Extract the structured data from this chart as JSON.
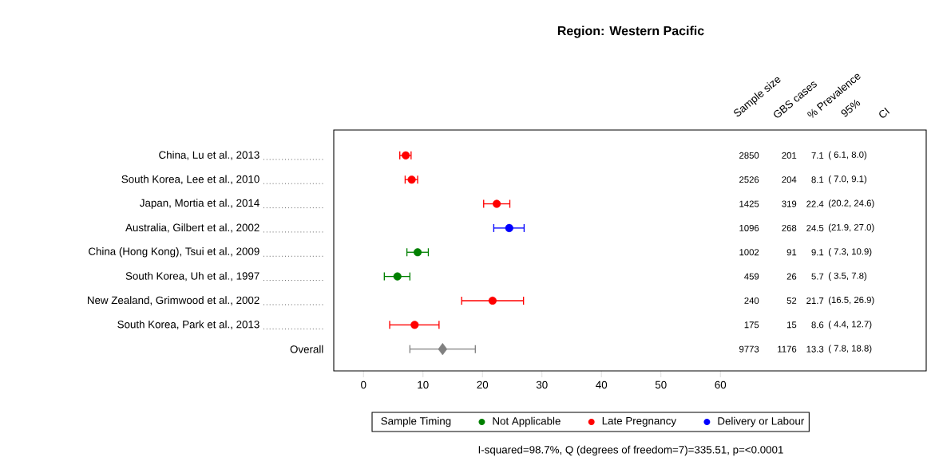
{
  "chart_data": {
    "type": "scatter",
    "orientation": "horizontal",
    "title": "Region: Western Pacific",
    "categories": [
      "China, Lu et al., 2013",
      "South Korea, Lee et al., 2010",
      "Japan, Mortia et al., 2014",
      "Australia, Gilbert et al., 2002",
      "China (Hong Kong), Tsui et al., 2009",
      "South Korea, Uh et al., 1997",
      "New Zealand, Grimwood et al., 2002",
      "South Korea, Park et al., 2013",
      "Overall"
    ],
    "series": [
      {
        "name": "Not Applicable",
        "color": "#008000",
        "marker": "circle",
        "values": [
          null,
          null,
          null,
          null,
          9.1,
          5.7,
          null,
          null,
          null
        ],
        "errors": [
          null,
          null,
          null,
          null,
          [
            7.3,
            10.9
          ],
          [
            3.5,
            7.8
          ],
          null,
          null,
          null
        ]
      },
      {
        "name": "Late Pregnancy",
        "color": "#ff0000",
        "marker": "circle",
        "values": [
          7.1,
          8.1,
          22.4,
          null,
          null,
          null,
          21.7,
          8.6,
          null
        ],
        "errors": [
          [
            6.1,
            8.0
          ],
          [
            7.0,
            9.1
          ],
          [
            20.2,
            24.6
          ],
          null,
          null,
          null,
          [
            16.5,
            26.9
          ],
          [
            4.4,
            12.7
          ],
          null
        ]
      },
      {
        "name": "Delivery or Labour",
        "color": "#0000ff",
        "marker": "circle",
        "values": [
          null,
          null,
          null,
          24.5,
          null,
          null,
          null,
          null,
          null
        ],
        "errors": [
          null,
          null,
          null,
          [
            21.9,
            27.0
          ],
          null,
          null,
          null,
          null,
          null
        ]
      },
      {
        "color": "#808080",
        "marker": "diamond",
        "values": [
          null,
          null,
          null,
          null,
          null,
          null,
          null,
          null,
          13.3
        ],
        "errors": [
          null,
          null,
          null,
          null,
          null,
          null,
          null,
          null,
          [
            7.8,
            18.8
          ]
        ]
      }
    ],
    "xlim": [
      -5,
      94.6
    ],
    "xticks": [
      0,
      10,
      20,
      30,
      40,
      50,
      60
    ],
    "legend": "bottom",
    "legend_title": "Sample Timing",
    "grid": false,
    "annotations": [
      "Sample size",
      "GBS cases",
      "% Prevalence",
      "95%",
      "CI",
      "2850",
      "201",
      "7.1",
      "( 6.1, 8.0)",
      "2526",
      "204",
      "8.1",
      "( 7.0, 9.1)",
      "1425",
      "319",
      "22.4",
      "(20.2, 24.6)",
      "1096",
      "268",
      "24.5",
      "(21.9, 27.0)",
      "1002",
      "91",
      "9.1",
      "( 7.3, 10.9)",
      "459",
      "26",
      "5.7",
      "( 3.5, 7.8)",
      "240",
      "52",
      "21.7",
      "(16.5, 26.9)",
      "175",
      "15",
      "8.6",
      "( 4.4, 12.7)",
      "9773",
      "1176",
      "13.3",
      "( 7.8, 18.8)",
      "I-squared=98.7%, Q (degrees of freedom=7)=335.51, p=<0.0001"
    ]
  }
}
